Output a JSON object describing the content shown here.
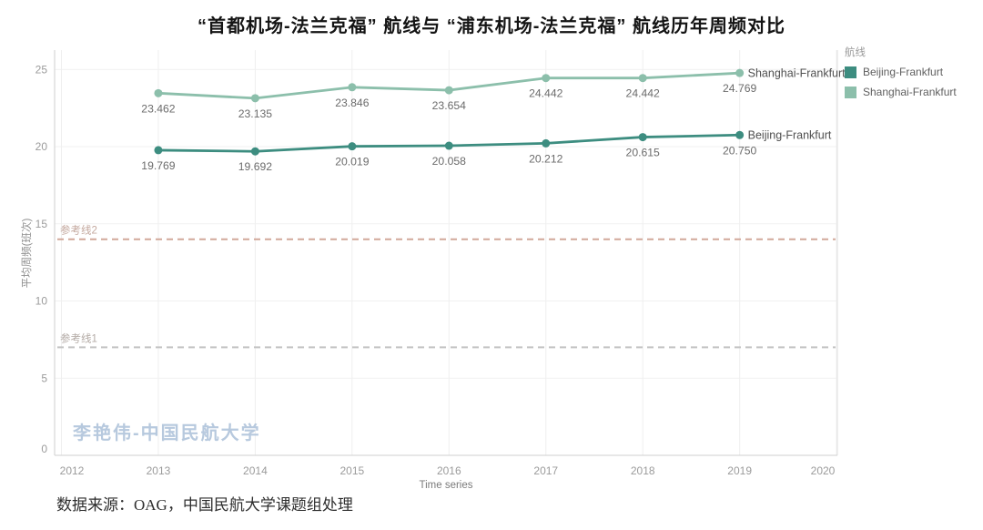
{
  "page": {
    "title": "“首都机场-法兰克福” 航线与 “浦东机场-法兰克福” 航线历年周频对比",
    "watermark": "李艳伟-中国民航大学",
    "caption": "数据来源：OAG，中国民航大学课题组处理"
  },
  "chart_data": {
    "type": "line",
    "title": "“首都机场-法兰克福” 航线与 “浦东机场-法兰克福” 航线历年周频对比",
    "x": [
      2013,
      2014,
      2015,
      2016,
      2017,
      2018,
      2019
    ],
    "x_axis": {
      "label": "Time series",
      "ticks": [
        2012,
        2013,
        2014,
        2015,
        2016,
        2017,
        2018,
        2019,
        2020
      ]
    },
    "y_axis": {
      "label": "平均周频(班次)",
      "ticks": [
        0,
        5,
        10,
        15,
        20,
        25
      ],
      "range": [
        0,
        26.3
      ],
      "grid": true
    },
    "series": [
      {
        "name": "Beijing-Frankfurt",
        "color": "#3d8d80",
        "values": [
          19.769,
          19.692,
          20.019,
          20.058,
          20.212,
          20.615,
          20.75
        ],
        "value_labels": [
          "19.769",
          "19.692",
          "20.019",
          "20.058",
          "20.212",
          "20.615",
          "20.750"
        ]
      },
      {
        "name": "Shanghai-Frankfurt",
        "color": "#8cbfab",
        "values": [
          23.462,
          23.135,
          23.846,
          23.654,
          24.442,
          24.442,
          24.769
        ],
        "value_labels": [
          "23.462",
          "23.135",
          "23.846",
          "23.654",
          "24.442",
          "24.442",
          "24.769"
        ]
      }
    ],
    "reference_lines": [
      {
        "name": "参考线2",
        "value": 14,
        "line_color": "#d2a89a",
        "label_color": "#c4a99f"
      },
      {
        "name": "参考线1",
        "value": 7,
        "line_color": "#c3c3c3",
        "label_color": "#b3aaa5"
      }
    ],
    "legend": {
      "title": "航线",
      "position": "top-right",
      "entries": [
        {
          "label": "Beijing-Frankfurt",
          "color": "#3d8d80"
        },
        {
          "label": "Shanghai-Frankfurt",
          "color": "#8cbfab"
        }
      ]
    }
  }
}
